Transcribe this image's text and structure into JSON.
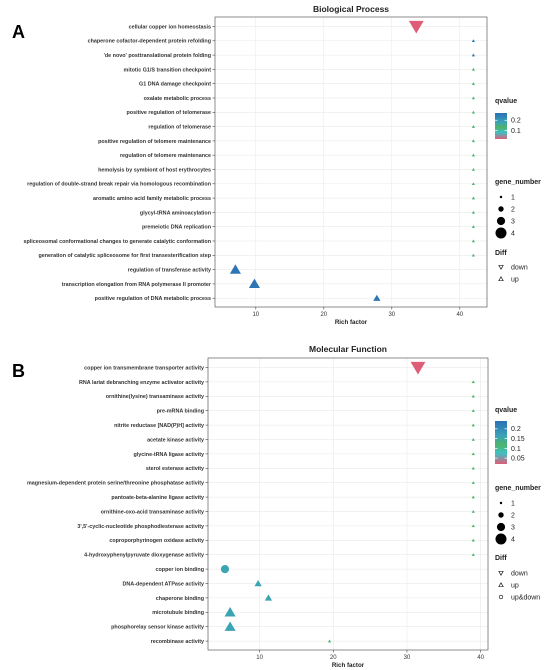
{
  "chart_data": [
    {
      "type": "scatter",
      "panel_label": "A",
      "title": "Biological Process",
      "xlabel": "Rich factor",
      "ylabel": "",
      "xlim": [
        4,
        44
      ],
      "xticks": [
        10,
        20,
        30,
        40
      ],
      "grid": true,
      "legend_placement": "right",
      "qvalue_legend": {
        "title": "qvalue",
        "ticks": [
          0.2,
          0.1
        ],
        "range": [
          0.02,
          0.27
        ]
      },
      "size_legend": {
        "title": "gene_number",
        "values": [
          1,
          2,
          3,
          4
        ]
      },
      "shape_legend": {
        "title": "Diff",
        "entries": [
          "down",
          "up"
        ]
      },
      "points": [
        {
          "term": "cellular copper ion homeostasis",
          "rich_factor": 33.6,
          "gene_number": 4,
          "qvalue": 0.02,
          "diff": "down"
        },
        {
          "term": "chaperone cofactor-dependent protein refolding",
          "rich_factor": 42,
          "gene_number": 1,
          "qvalue": 0.25,
          "diff": "up"
        },
        {
          "term": "'de novo' posttranslational protein folding",
          "rich_factor": 42,
          "gene_number": 1,
          "qvalue": 0.25,
          "diff": "up"
        },
        {
          "term": "mitotic G1/S transition checkpoint",
          "rich_factor": 42,
          "gene_number": 1,
          "qvalue": 0.13,
          "diff": "up"
        },
        {
          "term": "G1 DNA damage checkpoint",
          "rich_factor": 42,
          "gene_number": 1,
          "qvalue": 0.13,
          "diff": "up"
        },
        {
          "term": "oxalate metabolic process",
          "rich_factor": 42,
          "gene_number": 1,
          "qvalue": 0.13,
          "diff": "up"
        },
        {
          "term": "positive regulation of telomerase",
          "rich_factor": 42,
          "gene_number": 1,
          "qvalue": 0.13,
          "diff": "up"
        },
        {
          "term": "regulation of telomerase",
          "rich_factor": 42,
          "gene_number": 1,
          "qvalue": 0.13,
          "diff": "up"
        },
        {
          "term": "positive regulation of telomere maintenance",
          "rich_factor": 42,
          "gene_number": 1,
          "qvalue": 0.13,
          "diff": "up"
        },
        {
          "term": "regulation of telomere maintenance",
          "rich_factor": 42,
          "gene_number": 1,
          "qvalue": 0.13,
          "diff": "up"
        },
        {
          "term": "hemolysis by symbiont of host erythrocytes",
          "rich_factor": 42,
          "gene_number": 1,
          "qvalue": 0.13,
          "diff": "up"
        },
        {
          "term": "regulation of double-strand break repair via homologous recombination",
          "rich_factor": 42,
          "gene_number": 1,
          "qvalue": 0.13,
          "diff": "up"
        },
        {
          "term": "aromatic amino acid family metabolic process",
          "rich_factor": 42,
          "gene_number": 1,
          "qvalue": 0.13,
          "diff": "up"
        },
        {
          "term": "glycyl-tRNA aminoacylation",
          "rich_factor": 42,
          "gene_number": 1,
          "qvalue": 0.13,
          "diff": "up"
        },
        {
          "term": "premeiotic DNA replication",
          "rich_factor": 42,
          "gene_number": 1,
          "qvalue": 0.13,
          "diff": "up"
        },
        {
          "term": "spliceosomal conformational changes to generate catalytic conformation",
          "rich_factor": 42,
          "gene_number": 1,
          "qvalue": 0.13,
          "diff": "up"
        },
        {
          "term": "generation of catalytic spliceosome for first transesterification step",
          "rich_factor": 42,
          "gene_number": 1,
          "qvalue": 0.13,
          "diff": "up"
        },
        {
          "term": "regulation of transferase activity",
          "rich_factor": 7,
          "gene_number": 3,
          "qvalue": 0.26,
          "diff": "up"
        },
        {
          "term": "transcription elongation from RNA polymerase II promoter",
          "rich_factor": 9.8,
          "gene_number": 3,
          "qvalue": 0.26,
          "diff": "up"
        },
        {
          "term": "positive regulation of DNA metabolic process",
          "rich_factor": 27.8,
          "gene_number": 2,
          "qvalue": 0.26,
          "diff": "up"
        }
      ]
    },
    {
      "type": "scatter",
      "panel_label": "B",
      "title": "Molecular Function",
      "xlabel": "Rich factor",
      "ylabel": "",
      "xlim": [
        3,
        41
      ],
      "xticks": [
        10,
        20,
        30,
        40
      ],
      "grid": true,
      "legend_placement": "right",
      "qvalue_legend": {
        "title": "qvalue",
        "ticks": [
          0.2,
          0.15,
          0.1,
          0.05
        ],
        "range": [
          0.02,
          0.24
        ]
      },
      "size_legend": {
        "title": "gene_number",
        "values": [
          1,
          2,
          3,
          4
        ]
      },
      "shape_legend": {
        "title": "Diff",
        "entries": [
          "down",
          "up",
          "up&down"
        ]
      },
      "points": [
        {
          "term": "copper ion transmembrane transporter activity",
          "rich_factor": 31.5,
          "gene_number": 4,
          "qvalue": 0.02,
          "diff": "down"
        },
        {
          "term": "RNA lariat debranching enzyme activator activity",
          "rich_factor": 39,
          "gene_number": 1,
          "qvalue": 0.12,
          "diff": "up"
        },
        {
          "term": "ornithine(lysine) transaminase activity",
          "rich_factor": 39,
          "gene_number": 1,
          "qvalue": 0.12,
          "diff": "up"
        },
        {
          "term": "pre-mRNA binding",
          "rich_factor": 39,
          "gene_number": 1,
          "qvalue": 0.12,
          "diff": "up"
        },
        {
          "term": "nitrite reductase [NAD(P)H] activity",
          "rich_factor": 39,
          "gene_number": 1,
          "qvalue": 0.12,
          "diff": "up"
        },
        {
          "term": "acetate kinase activity",
          "rich_factor": 39,
          "gene_number": 1,
          "qvalue": 0.12,
          "diff": "up"
        },
        {
          "term": "glycine-tRNA ligase activity",
          "rich_factor": 39,
          "gene_number": 1,
          "qvalue": 0.12,
          "diff": "up"
        },
        {
          "term": "sterol esterase activity",
          "rich_factor": 39,
          "gene_number": 1,
          "qvalue": 0.12,
          "diff": "up"
        },
        {
          "term": "magnesium-dependent protein serine/threonine phosphatase activity",
          "rich_factor": 39,
          "gene_number": 1,
          "qvalue": 0.12,
          "diff": "up"
        },
        {
          "term": "pantoate-beta-alanine ligase activity",
          "rich_factor": 39,
          "gene_number": 1,
          "qvalue": 0.12,
          "diff": "up"
        },
        {
          "term": "ornithine-oxo-acid transaminase activity",
          "rich_factor": 39,
          "gene_number": 1,
          "qvalue": 0.12,
          "diff": "up"
        },
        {
          "term": "3',5'-cyclic-nucleotide phosphodiesterase activity",
          "rich_factor": 39,
          "gene_number": 1,
          "qvalue": 0.12,
          "diff": "up"
        },
        {
          "term": "coproporphyrinogen oxidase activity",
          "rich_factor": 39,
          "gene_number": 1,
          "qvalue": 0.12,
          "diff": "up"
        },
        {
          "term": "4-hydroxyphenylpyruvate dioxygenase activity",
          "rich_factor": 39,
          "gene_number": 1,
          "qvalue": 0.12,
          "diff": "up"
        },
        {
          "term": "copper ion binding",
          "rich_factor": 5.3,
          "gene_number": 3,
          "qvalue": 0.16,
          "diff": "up&down"
        },
        {
          "term": "DNA-dependent ATPase activity",
          "rich_factor": 9.8,
          "gene_number": 2,
          "qvalue": 0.16,
          "diff": "up"
        },
        {
          "term": "chaperone binding",
          "rich_factor": 11.2,
          "gene_number": 2,
          "qvalue": 0.16,
          "diff": "up"
        },
        {
          "term": "microtubule binding",
          "rich_factor": 6,
          "gene_number": 3,
          "qvalue": 0.16,
          "diff": "up"
        },
        {
          "term": "phosphorelay sensor kinase activity",
          "rich_factor": 6,
          "gene_number": 3,
          "qvalue": 0.16,
          "diff": "up"
        },
        {
          "term": "recombinase activity",
          "rich_factor": 19.5,
          "gene_number": 1,
          "qvalue": 0.12,
          "diff": "up"
        }
      ]
    }
  ]
}
